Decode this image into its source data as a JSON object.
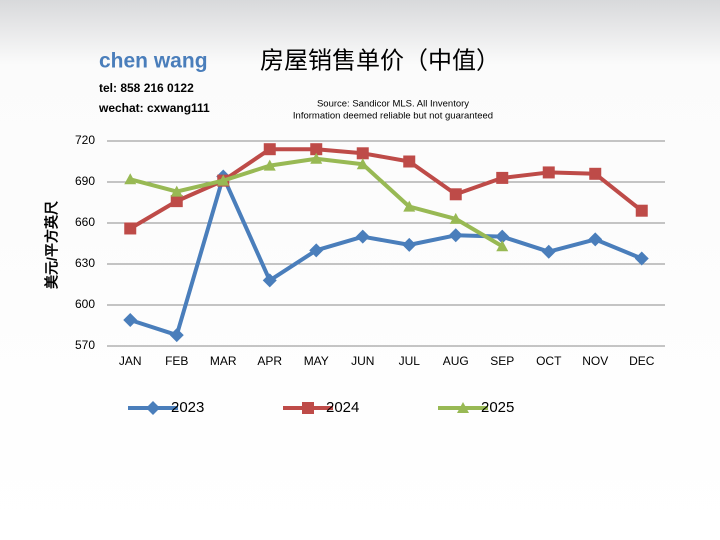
{
  "header": {
    "name": "chen wang",
    "tel": "tel: 858 216 0122",
    "wechat": "wechat: cxwang111"
  },
  "chart_data": {
    "type": "line",
    "title": "房屋销售单价（中值）",
    "source": [
      "Source: Sandicor MLS. All Inventory",
      "Information deemed reliable but not guaranteed"
    ],
    "ylabel": "美元/平方英尺",
    "categories": [
      "JAN",
      "FEB",
      "MAR",
      "APR",
      "MAY",
      "JUN",
      "JUL",
      "AUG",
      "SEP",
      "OCT",
      "NOV",
      "DEC"
    ],
    "series": [
      {
        "name": "2023",
        "color": "#4a7ebb",
        "marker": "diamond",
        "values": [
          589,
          578,
          694,
          618,
          640,
          650,
          644,
          651,
          650,
          639,
          648,
          634
        ]
      },
      {
        "name": "2024",
        "color": "#be4b48",
        "marker": "square",
        "values": [
          656,
          676,
          691,
          714,
          714,
          711,
          705,
          681,
          693,
          697,
          696,
          669
        ]
      },
      {
        "name": "2025",
        "color": "#98b954",
        "marker": "triangle",
        "values": [
          692,
          683,
          691,
          702,
          707,
          703,
          672,
          663,
          643,
          null,
          null,
          null
        ]
      }
    ],
    "ylim": [
      570,
      720
    ],
    "yticks": [
      570,
      600,
      630,
      660,
      690,
      720
    ],
    "grid": true,
    "legend": "bottom"
  }
}
